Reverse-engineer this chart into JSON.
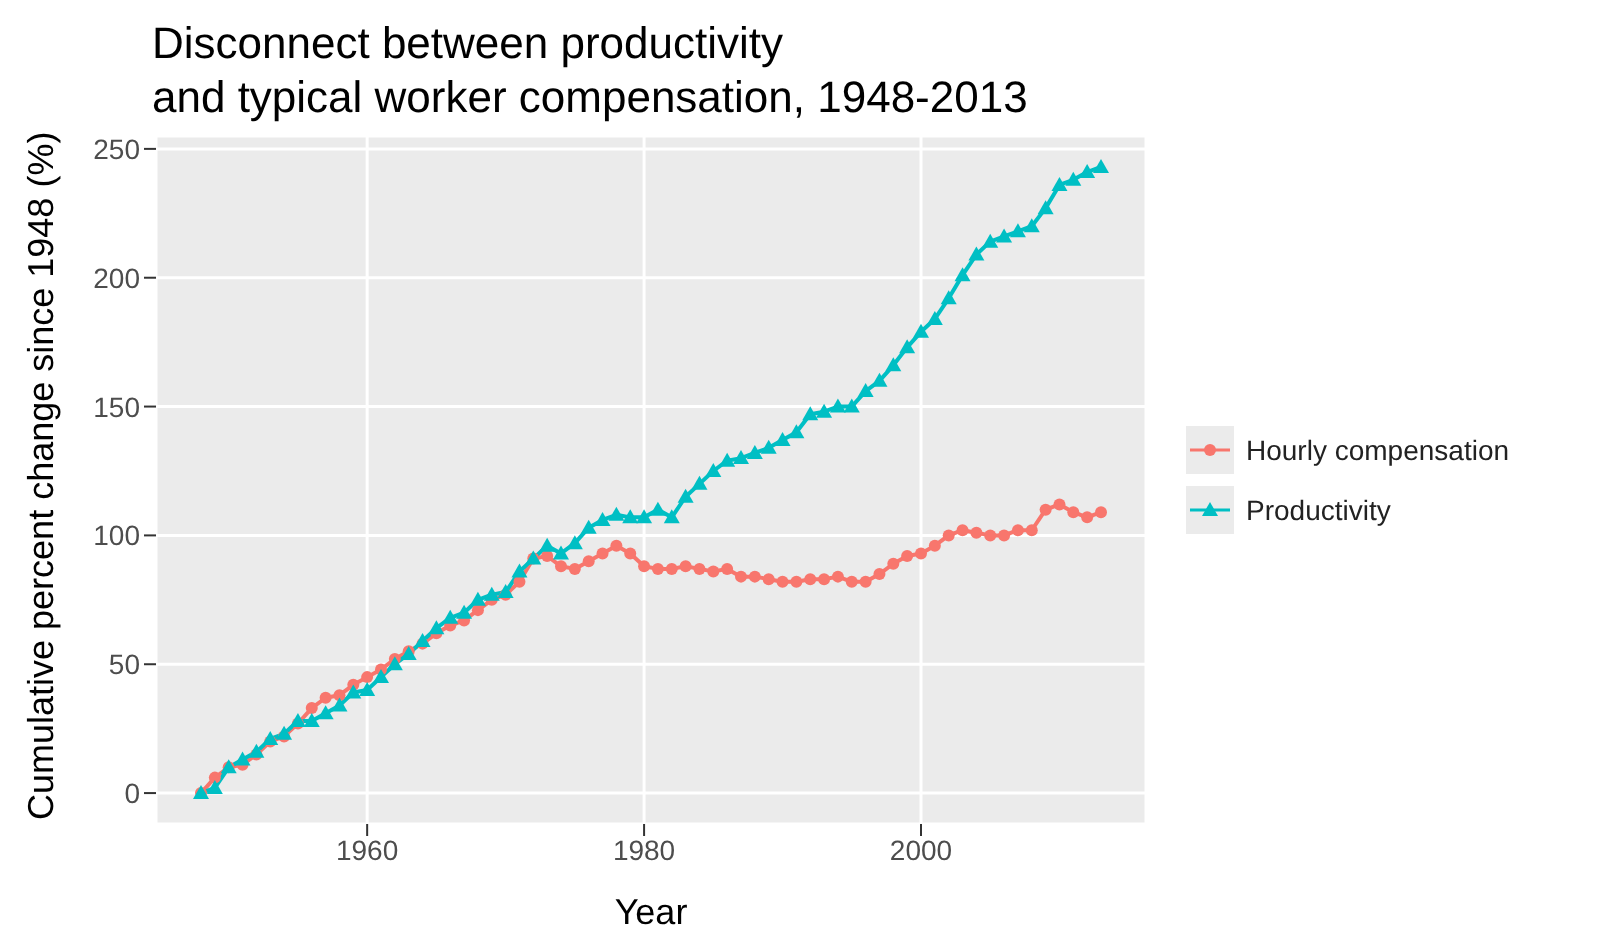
{
  "chart_data": {
    "type": "line",
    "title": "Disconnect between productivity\nand typical worker compensation, 1948-2013",
    "xlabel": "Year",
    "ylabel": "Cumulative percent change since 1948 (%)",
    "x": [
      1948,
      1949,
      1950,
      1951,
      1952,
      1953,
      1954,
      1955,
      1956,
      1957,
      1958,
      1959,
      1960,
      1961,
      1962,
      1963,
      1964,
      1965,
      1966,
      1967,
      1968,
      1969,
      1970,
      1971,
      1972,
      1973,
      1974,
      1975,
      1976,
      1977,
      1978,
      1979,
      1980,
      1981,
      1982,
      1983,
      1984,
      1985,
      1986,
      1987,
      1988,
      1989,
      1990,
      1991,
      1992,
      1993,
      1994,
      1995,
      1996,
      1997,
      1998,
      1999,
      2000,
      2001,
      2002,
      2003,
      2004,
      2005,
      2006,
      2007,
      2008,
      2009,
      2010,
      2011,
      2012,
      2013
    ],
    "series": [
      {
        "name": "Hourly compensation",
        "color": "#f8766d",
        "marker": "circle",
        "values": [
          0,
          6,
          10,
          11,
          15,
          20,
          22,
          27,
          33,
          37,
          38,
          42,
          45,
          48,
          52,
          55,
          58,
          62,
          65,
          67,
          71,
          75,
          77,
          82,
          91,
          92,
          88,
          87,
          90,
          93,
          96,
          93,
          88,
          87,
          87,
          88,
          87,
          86,
          87,
          84,
          84,
          83,
          82,
          82,
          83,
          83,
          84,
          82,
          82,
          85,
          89,
          92,
          93,
          96,
          100,
          102,
          101,
          100,
          100,
          102,
          102,
          110,
          112,
          109,
          107,
          109
        ]
      },
      {
        "name": "Productivity",
        "color": "#00bfc4",
        "marker": "triangle",
        "values": [
          0,
          2,
          10,
          13,
          16,
          21,
          23,
          28,
          28,
          31,
          34,
          39,
          40,
          45,
          50,
          54,
          59,
          64,
          68,
          70,
          75,
          77,
          78,
          86,
          91,
          96,
          93,
          97,
          103,
          106,
          108,
          107,
          107,
          110,
          107,
          115,
          120,
          125,
          129,
          130,
          132,
          134,
          137,
          140,
          147,
          148,
          150,
          150,
          156,
          160,
          166,
          173,
          179,
          184,
          192,
          201,
          209,
          214,
          216,
          218,
          220,
          227,
          236,
          238,
          241,
          243
        ]
      }
    ],
    "xlim": [
      1944.75,
      2016.25
    ],
    "xticks": [
      1960,
      1980,
      2000
    ],
    "ylim": [
      -12,
      255
    ],
    "yticks": [
      0,
      50,
      100,
      150,
      200,
      250
    ],
    "grid": true,
    "legend": "right",
    "line_style": "solid"
  }
}
